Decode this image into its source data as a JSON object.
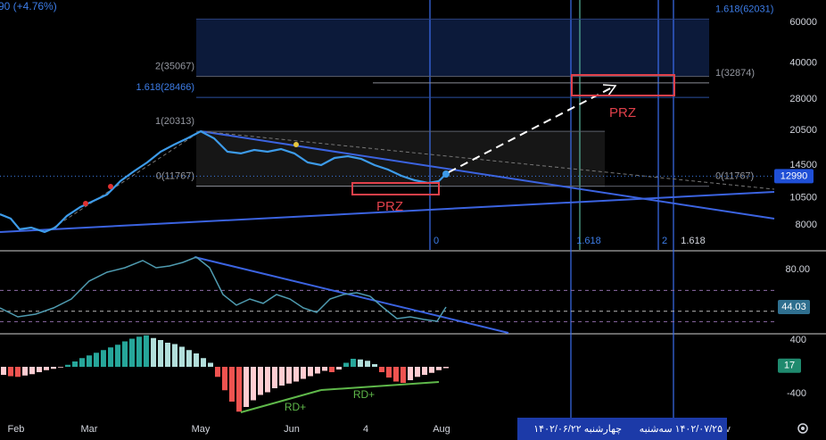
{
  "header": {
    "ticker_change": "90 (+4.76%)"
  },
  "chart_data": [
    {
      "type": "line",
      "color": "#3d9be9",
      "log_scale": true,
      "xlim": [
        0,
        100
      ],
      "ylim": [
        6240,
        75000
      ],
      "yticks": [
        8000,
        10500,
        14500,
        20500,
        28000,
        40000,
        60000
      ],
      "x": [
        0,
        1.38,
        2.53,
        4.03,
        5.76,
        7.14,
        8.64,
        10.37,
        12.1,
        13.82,
        15.55,
        17.28,
        19.01,
        20.74,
        22.47,
        24.19,
        25.92,
        27.65,
        29.38,
        31.11,
        32.83,
        34.56,
        36.29,
        38.02,
        39.75,
        41.47,
        43.2,
        44.93,
        46.66,
        48.39,
        50.12,
        51.84,
        53.57,
        55.3,
        56.68,
        57.6
      ],
      "values": [
        8900,
        8520,
        7660,
        7790,
        7460,
        7790,
        8750,
        9560,
        10170,
        10830,
        12370,
        13630,
        14900,
        16570,
        17780,
        18940,
        20310,
        18940,
        16570,
        16290,
        16870,
        16570,
        17020,
        16290,
        14900,
        14510,
        15570,
        15860,
        15430,
        14510,
        13880,
        13040,
        12470,
        12150,
        12370,
        13280
      ],
      "current_value": 12990,
      "fib_levels": [
        {
          "label": "1.618(62031)",
          "value": 62031
        },
        {
          "label": "2(35067)",
          "value": 35067
        },
        {
          "label": "1.618(28466)",
          "value": 28466
        },
        {
          "label": "1(20313)",
          "value": 20313
        },
        {
          "label": "0(11767)",
          "value": 11767
        },
        {
          "label": "1(32874)",
          "value": 32874
        },
        {
          "label": "0(11767)",
          "value": 11767
        }
      ],
      "time_fib_labels": [
        "0",
        "1.618",
        "2",
        "1.618"
      ],
      "annotations": [
        "PRZ",
        "PRZ"
      ]
    },
    {
      "type": "line",
      "color": "#4f9bb0",
      "xlim": [
        0,
        100
      ],
      "ylim": [
        19.2,
        97.1
      ],
      "yticks": [
        {
          "value": 80,
          "label": "80.00"
        }
      ],
      "levels": [
        60,
        40,
        30
      ],
      "x": [
        0,
        2.3,
        4.61,
        6.91,
        9.22,
        11.52,
        13.82,
        16.13,
        18.43,
        20.16,
        21.89,
        23.62,
        25.35,
        27.07,
        28.8,
        30.53,
        32.26,
        33.99,
        35.71,
        37.44,
        39.17,
        40.9,
        42.63,
        44.35,
        46.08,
        47.81,
        49.54,
        51.27,
        53.0,
        54.72,
        56.45,
        57.6
      ],
      "values": [
        43.2,
        34.6,
        37.2,
        43.2,
        51.7,
        68.9,
        77.4,
        81.7,
        88.6,
        81.7,
        83.4,
        86.8,
        92.0,
        81.7,
        56.0,
        45.8,
        51.7,
        47.5,
        56.0,
        51.7,
        43.2,
        38.9,
        51.7,
        56.0,
        57.7,
        54.3,
        43.2,
        32.9,
        34.6,
        32.1,
        30.3,
        44.03
      ],
      "current_value": 44.03
    },
    {
      "type": "bar",
      "xlim": [
        0,
        100
      ],
      "ylim": [
        -760,
        480
      ],
      "yticks": [
        400,
        -400
      ],
      "colors": {
        "up_growing": "#26a69a",
        "up_falling": "#b2dfdb",
        "down_falling": "#ef5350",
        "down_rising": "#ffcdd2"
      },
      "x": [
        0.46,
        1.38,
        2.3,
        3.23,
        4.15,
        5.07,
        5.99,
        6.91,
        7.83,
        8.76,
        9.68,
        10.6,
        11.52,
        12.44,
        13.36,
        14.29,
        15.21,
        16.13,
        17.05,
        17.97,
        18.89,
        19.82,
        20.74,
        21.66,
        22.58,
        23.5,
        24.42,
        25.35,
        26.27,
        27.19,
        28.11,
        29.03,
        29.95,
        30.88,
        31.8,
        32.72,
        33.64,
        34.56,
        35.48,
        36.41,
        37.33,
        38.25,
        39.17,
        40.09,
        41.01,
        41.94,
        42.86,
        43.78,
        44.7,
        45.62,
        46.54,
        47.47,
        48.39,
        49.31,
        50.23,
        51.15,
        52.07,
        53.0,
        53.92,
        54.84,
        55.76,
        56.68,
        57.6
      ],
      "values": [
        -120,
        -140,
        -150,
        -130,
        -110,
        -80,
        -50,
        -30,
        -10,
        30,
        80,
        130,
        170,
        210,
        250,
        290,
        330,
        380,
        420,
        450,
        470,
        430,
        400,
        360,
        340,
        300,
        250,
        200,
        130,
        60,
        -150,
        -350,
        -520,
        -670,
        -600,
        -500,
        -420,
        -380,
        -320,
        -280,
        -250,
        -220,
        -180,
        -140,
        -100,
        -60,
        -80,
        -40,
        60,
        120,
        110,
        90,
        40,
        -80,
        -160,
        -220,
        -240,
        -200,
        -150,
        -120,
        -90,
        -50,
        -20
      ],
      "current_value": 17,
      "xticks": [
        {
          "value": 2.07,
          "label": "Feb"
        },
        {
          "value": 11.52,
          "label": "Mar"
        },
        {
          "value": 25.92,
          "label": "May"
        },
        {
          "value": 37.67,
          "label": "Jun"
        },
        {
          "value": 47.24,
          "label": "4"
        },
        {
          "value": 57.03,
          "label": "Aug"
        },
        {
          "value": 94.01,
          "label": "v"
        }
      ],
      "annotations": [
        "RD+",
        "RD+"
      ]
    }
  ],
  "time_axis": {
    "cursor_dates": [
      "چهارشنبه ۱۴۰۲/۰۶/۲۲",
      "۱۴۰۲/۰۷/۲۵ سه‌شنبه"
    ]
  }
}
